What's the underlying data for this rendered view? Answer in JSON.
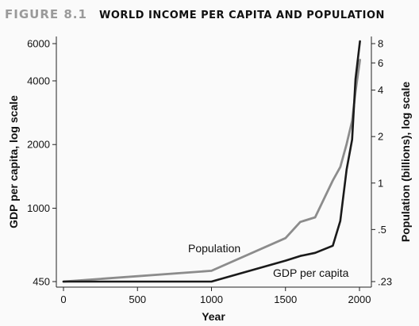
{
  "header": {
    "figure_label": "FIGURE 8.1",
    "title": "WORLD INCOME PER CAPITA AND POPULATION"
  },
  "chart_data": {
    "type": "line",
    "xlabel": "Year",
    "ylabel_left": "GDP per capita, log scale",
    "ylabel_right": "Population (billions), log scale",
    "x_ticks": [
      0,
      500,
      1000,
      1500,
      2000
    ],
    "xlim": [
      0,
      2000
    ],
    "left_axis": {
      "scale": "log",
      "ticks": [
        450,
        1000,
        2000,
        4000,
        6000
      ],
      "tick_labels": [
        "450",
        "1000",
        "2000",
        "4000",
        "6000"
      ],
      "ylim": [
        450,
        6000
      ]
    },
    "right_axis": {
      "scale": "log",
      "ticks": [
        0.23,
        0.5,
        1,
        2,
        4,
        6,
        8
      ],
      "tick_labels": [
        ".23",
        ".5",
        "1",
        "2",
        "4",
        "6",
        "8"
      ],
      "ylim": [
        0.23,
        8
      ]
    },
    "grid": false,
    "series": [
      {
        "name": "GDP per capita",
        "axis": "left",
        "color": "#1a1a1a",
        "x": [
          0,
          1000,
          1500,
          1600,
          1700,
          1820,
          1870,
          1913,
          1950,
          1973,
          2003
        ],
        "y": [
          450,
          450,
          565,
          595,
          615,
          665,
          870,
          1525,
          2110,
          4080,
          6160
        ]
      },
      {
        "name": "Population",
        "axis": "right",
        "color": "#8c8c8c",
        "x": [
          0,
          1000,
          1500,
          1600,
          1700,
          1820,
          1870,
          1913,
          1950,
          1973,
          2003
        ],
        "y": [
          0.23,
          0.27,
          0.44,
          0.56,
          0.6,
          1.04,
          1.27,
          1.79,
          2.52,
          3.92,
          6.28
        ]
      }
    ],
    "annotations": [
      {
        "text": "Population",
        "series": "Population"
      },
      {
        "text": "GDP per capita",
        "series": "GDP per capita"
      }
    ]
  }
}
